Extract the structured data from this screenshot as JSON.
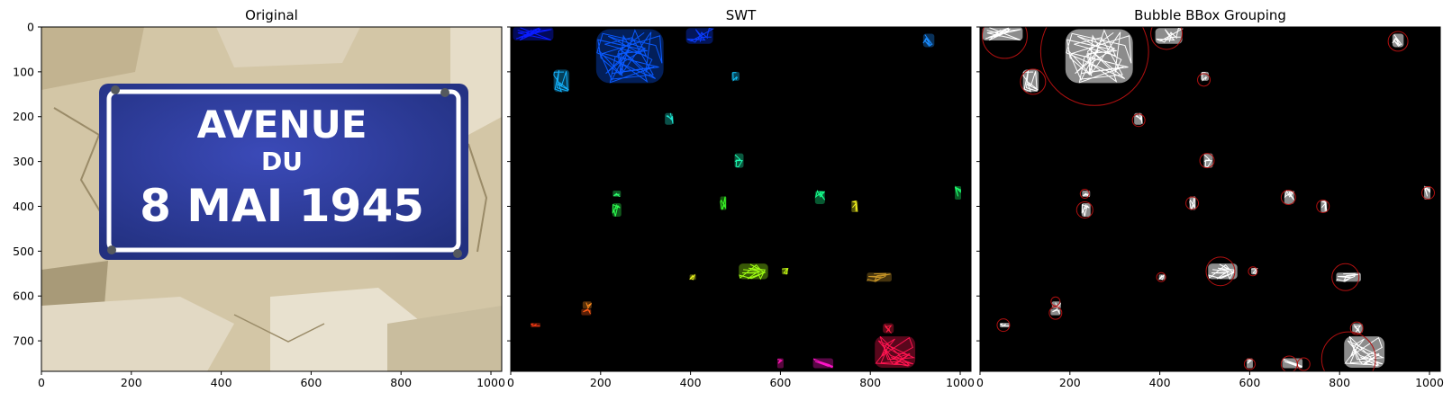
{
  "figure": {
    "panels": [
      {
        "title": "Original"
      },
      {
        "title": "SWT"
      },
      {
        "title": "Bubble BBox Grouping"
      }
    ]
  },
  "sign": {
    "line1": "AVENUE",
    "line2": "DU",
    "line3": "8 MAI 1945",
    "plate_color": "#2b3a9e",
    "text_color": "#ffffff",
    "wall_color": "#d9ccae"
  },
  "chart_data": [
    {
      "type": "image",
      "title": "Original",
      "xlim": [
        0,
        1024
      ],
      "ylim": [
        768,
        0
      ],
      "xticks": [
        0,
        200,
        400,
        600,
        800,
        1000
      ],
      "yticks": [
        0,
        100,
        200,
        300,
        400,
        500,
        600,
        700
      ],
      "content": "photo of blue street sign on stone wall"
    },
    {
      "type": "image",
      "title": "SWT",
      "xlim": [
        0,
        1024
      ],
      "ylim": [
        768,
        0
      ],
      "xticks": [
        0,
        200,
        400,
        600,
        800,
        1000
      ],
      "yticks": [
        0,
        100,
        200,
        300,
        400,
        500,
        600,
        700
      ],
      "background": "#000000",
      "components": [
        {
          "x": 50,
          "y": 15,
          "w": 90,
          "h": 30,
          "color": "#0a1cff"
        },
        {
          "x": 265,
          "y": 65,
          "w": 150,
          "h": 120,
          "color": "#0a5aff"
        },
        {
          "x": 420,
          "y": 20,
          "w": 60,
          "h": 35,
          "color": "#0a3cff"
        },
        {
          "x": 930,
          "y": 30,
          "w": 25,
          "h": 30,
          "color": "#1a8cff"
        },
        {
          "x": 113,
          "y": 120,
          "w": 35,
          "h": 50,
          "color": "#14b4ff"
        },
        {
          "x": 500,
          "y": 110,
          "w": 18,
          "h": 20,
          "color": "#14c8ff"
        },
        {
          "x": 352,
          "y": 205,
          "w": 18,
          "h": 26,
          "color": "#1ee6d2"
        },
        {
          "x": 508,
          "y": 298,
          "w": 20,
          "h": 32,
          "color": "#1effb4"
        },
        {
          "x": 236,
          "y": 372,
          "w": 18,
          "h": 14,
          "color": "#2dff6e"
        },
        {
          "x": 236,
          "y": 408,
          "w": 20,
          "h": 30,
          "color": "#2dff50"
        },
        {
          "x": 473,
          "y": 393,
          "w": 14,
          "h": 30,
          "color": "#3cff28"
        },
        {
          "x": 688,
          "y": 380,
          "w": 22,
          "h": 30,
          "color": "#14ff8c"
        },
        {
          "x": 765,
          "y": 400,
          "w": 14,
          "h": 26,
          "color": "#f0f01e"
        },
        {
          "x": 995,
          "y": 370,
          "w": 14,
          "h": 30,
          "color": "#1eff6e"
        },
        {
          "x": 540,
          "y": 545,
          "w": 65,
          "h": 35,
          "color": "#a0ff14"
        },
        {
          "x": 610,
          "y": 545,
          "w": 14,
          "h": 14,
          "color": "#c8ff14"
        },
        {
          "x": 405,
          "y": 558,
          "w": 14,
          "h": 12,
          "color": "#e6f01e"
        },
        {
          "x": 820,
          "y": 558,
          "w": 55,
          "h": 20,
          "color": "#c89628"
        },
        {
          "x": 170,
          "y": 620,
          "w": 20,
          "h": 16,
          "color": "#ff8c1e"
        },
        {
          "x": 168,
          "y": 636,
          "w": 22,
          "h": 14,
          "color": "#ff5a14"
        },
        {
          "x": 55,
          "y": 665,
          "w": 22,
          "h": 10,
          "color": "#ff3c14"
        },
        {
          "x": 840,
          "y": 672,
          "w": 24,
          "h": 22,
          "color": "#ff1e46"
        },
        {
          "x": 855,
          "y": 725,
          "w": 90,
          "h": 70,
          "color": "#ff1450"
        },
        {
          "x": 600,
          "y": 750,
          "w": 14,
          "h": 22,
          "color": "#ff14b4"
        },
        {
          "x": 695,
          "y": 750,
          "w": 45,
          "h": 22,
          "color": "#ff14c8"
        }
      ]
    },
    {
      "type": "image",
      "title": "Bubble BBox Grouping",
      "xlim": [
        0,
        1024
      ],
      "ylim": [
        768,
        0
      ],
      "xticks": [
        0,
        200,
        400,
        600,
        800,
        1000
      ],
      "yticks": [
        0,
        100,
        200,
        300,
        400,
        500,
        600,
        700
      ],
      "background": "#000000",
      "glyph_color": "#ffffff",
      "bubble_color": "#b01010",
      "bubbles": [
        {
          "x": 55,
          "y": 20,
          "r": 50
        },
        {
          "x": 255,
          "y": 55,
          "r": 120
        },
        {
          "x": 415,
          "y": 15,
          "r": 35
        },
        {
          "x": 930,
          "y": 32,
          "r": 22
        },
        {
          "x": 118,
          "y": 122,
          "r": 28
        },
        {
          "x": 498,
          "y": 118,
          "r": 14
        },
        {
          "x": 353,
          "y": 208,
          "r": 14
        },
        {
          "x": 505,
          "y": 298,
          "r": 16
        },
        {
          "x": 233,
          "y": 372,
          "r": 10
        },
        {
          "x": 233,
          "y": 408,
          "r": 18
        },
        {
          "x": 472,
          "y": 393,
          "r": 14
        },
        {
          "x": 686,
          "y": 380,
          "r": 16
        },
        {
          "x": 763,
          "y": 400,
          "r": 14
        },
        {
          "x": 997,
          "y": 370,
          "r": 14
        },
        {
          "x": 535,
          "y": 545,
          "r": 32
        },
        {
          "x": 607,
          "y": 545,
          "r": 10
        },
        {
          "x": 403,
          "y": 558,
          "r": 10
        },
        {
          "x": 813,
          "y": 558,
          "r": 30
        },
        {
          "x": 168,
          "y": 612,
          "r": 10
        },
        {
          "x": 168,
          "y": 638,
          "r": 14
        },
        {
          "x": 52,
          "y": 665,
          "r": 14
        },
        {
          "x": 838,
          "y": 672,
          "r": 14
        },
        {
          "x": 820,
          "y": 740,
          "r": 60
        },
        {
          "x": 600,
          "y": 752,
          "r": 12
        },
        {
          "x": 688,
          "y": 752,
          "r": 18
        },
        {
          "x": 720,
          "y": 752,
          "r": 14
        }
      ]
    }
  ]
}
